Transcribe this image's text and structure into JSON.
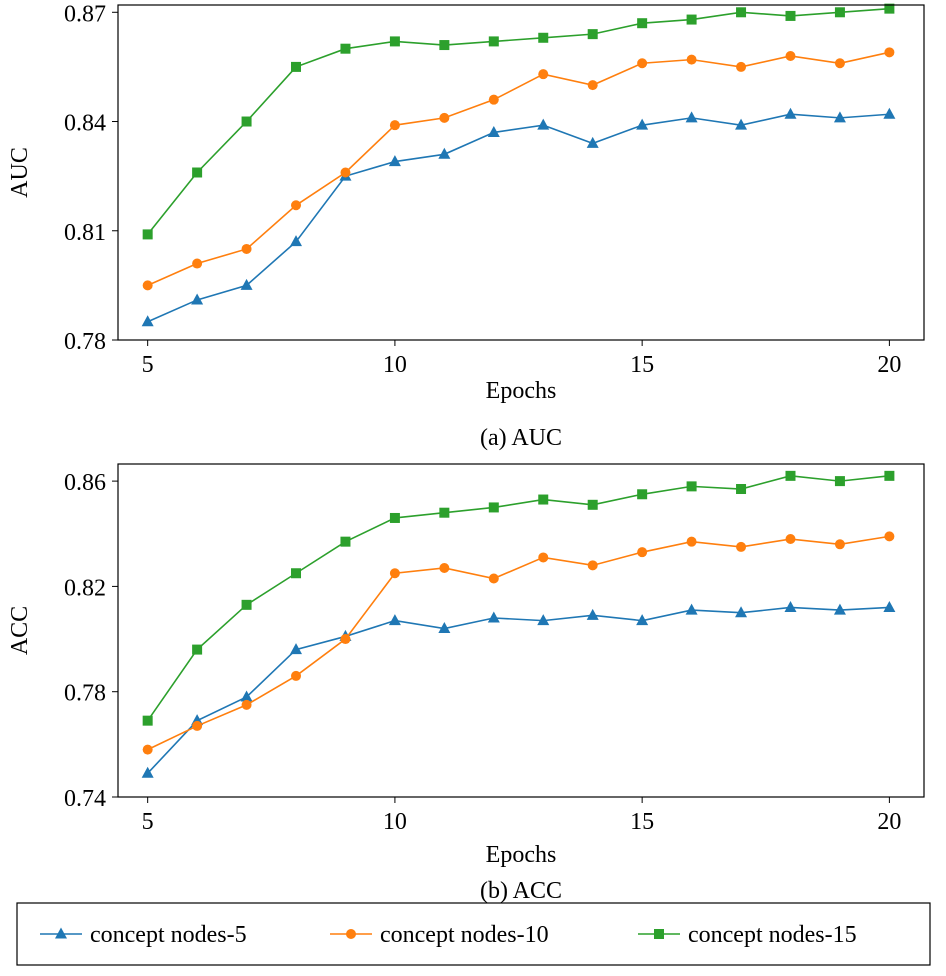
{
  "chart_data": [
    {
      "type": "line",
      "title": "(a) AUC",
      "xlabel": "Epochs",
      "ylabel": "AUC",
      "xlim": [
        4.4,
        20.7
      ],
      "ylim": [
        0.78,
        0.872
      ],
      "xticks": [
        5,
        10,
        15,
        20
      ],
      "yticks": [
        0.78,
        0.81,
        0.84,
        0.87
      ],
      "ytick_labels": [
        "0.78",
        "0.81",
        "0.84",
        "0.87"
      ],
      "grid": false,
      "x": [
        5,
        6,
        7,
        8,
        9,
        10,
        11,
        12,
        13,
        14,
        15,
        16,
        17,
        18,
        19,
        20
      ],
      "series": [
        {
          "name": "concept nodes-5",
          "values": [
            0.785,
            0.791,
            0.795,
            0.807,
            0.825,
            0.829,
            0.831,
            0.837,
            0.839,
            0.834,
            0.839,
            0.841,
            0.839,
            0.842,
            0.841,
            0.842
          ]
        },
        {
          "name": "concept nodes-10",
          "values": [
            0.795,
            0.801,
            0.805,
            0.817,
            0.826,
            0.839,
            0.841,
            0.846,
            0.853,
            0.85,
            0.856,
            0.857,
            0.855,
            0.858,
            0.856,
            0.859
          ]
        },
        {
          "name": "concept nodes-15",
          "values": [
            0.809,
            0.826,
            0.84,
            0.855,
            0.86,
            0.862,
            0.861,
            0.862,
            0.863,
            0.864,
            0.867,
            0.868,
            0.87,
            0.869,
            0.87,
            0.871
          ]
        }
      ]
    },
    {
      "type": "line",
      "title": "(b) ACC",
      "xlabel": "Epochs",
      "ylabel": "ACC",
      "xlim": [
        4.4,
        20.7
      ],
      "ylim": [
        0.74,
        0.8665
      ],
      "xticks": [
        5,
        10,
        15,
        20
      ],
      "yticks": [
        0.74,
        0.78,
        0.82,
        0.86
      ],
      "ytick_labels": [
        "0.74",
        "0.78",
        "0.82",
        "0.86"
      ],
      "grid": false,
      "x": [
        5,
        6,
        7,
        8,
        9,
        10,
        11,
        12,
        13,
        14,
        15,
        16,
        17,
        18,
        19,
        20
      ],
      "series": [
        {
          "name": "concept nodes-5",
          "values": [
            0.749,
            0.769,
            0.778,
            0.796,
            0.801,
            0.807,
            0.804,
            0.808,
            0.807,
            0.809,
            0.807,
            0.811,
            0.81,
            0.812,
            0.811,
            0.812
          ]
        },
        {
          "name": "concept nodes-10",
          "values": [
            0.758,
            0.767,
            0.775,
            0.786,
            0.8,
            0.825,
            0.827,
            0.823,
            0.831,
            0.828,
            0.833,
            0.837,
            0.835,
            0.838,
            0.836,
            0.839
          ]
        },
        {
          "name": "concept nodes-15",
          "values": [
            0.769,
            0.796,
            0.813,
            0.825,
            0.837,
            0.846,
            0.848,
            0.85,
            0.853,
            0.851,
            0.855,
            0.858,
            0.857,
            0.862,
            0.86,
            0.862
          ]
        }
      ]
    }
  ],
  "legend": {
    "placement": "bottom",
    "entries": [
      {
        "label": "concept nodes-5",
        "color": "#1f77b4",
        "marker": "triangle"
      },
      {
        "label": "concept nodes-10",
        "color": "#ff7f0e",
        "marker": "circle"
      },
      {
        "label": "concept nodes-15",
        "color": "#2ca02c",
        "marker": "square"
      }
    ]
  }
}
